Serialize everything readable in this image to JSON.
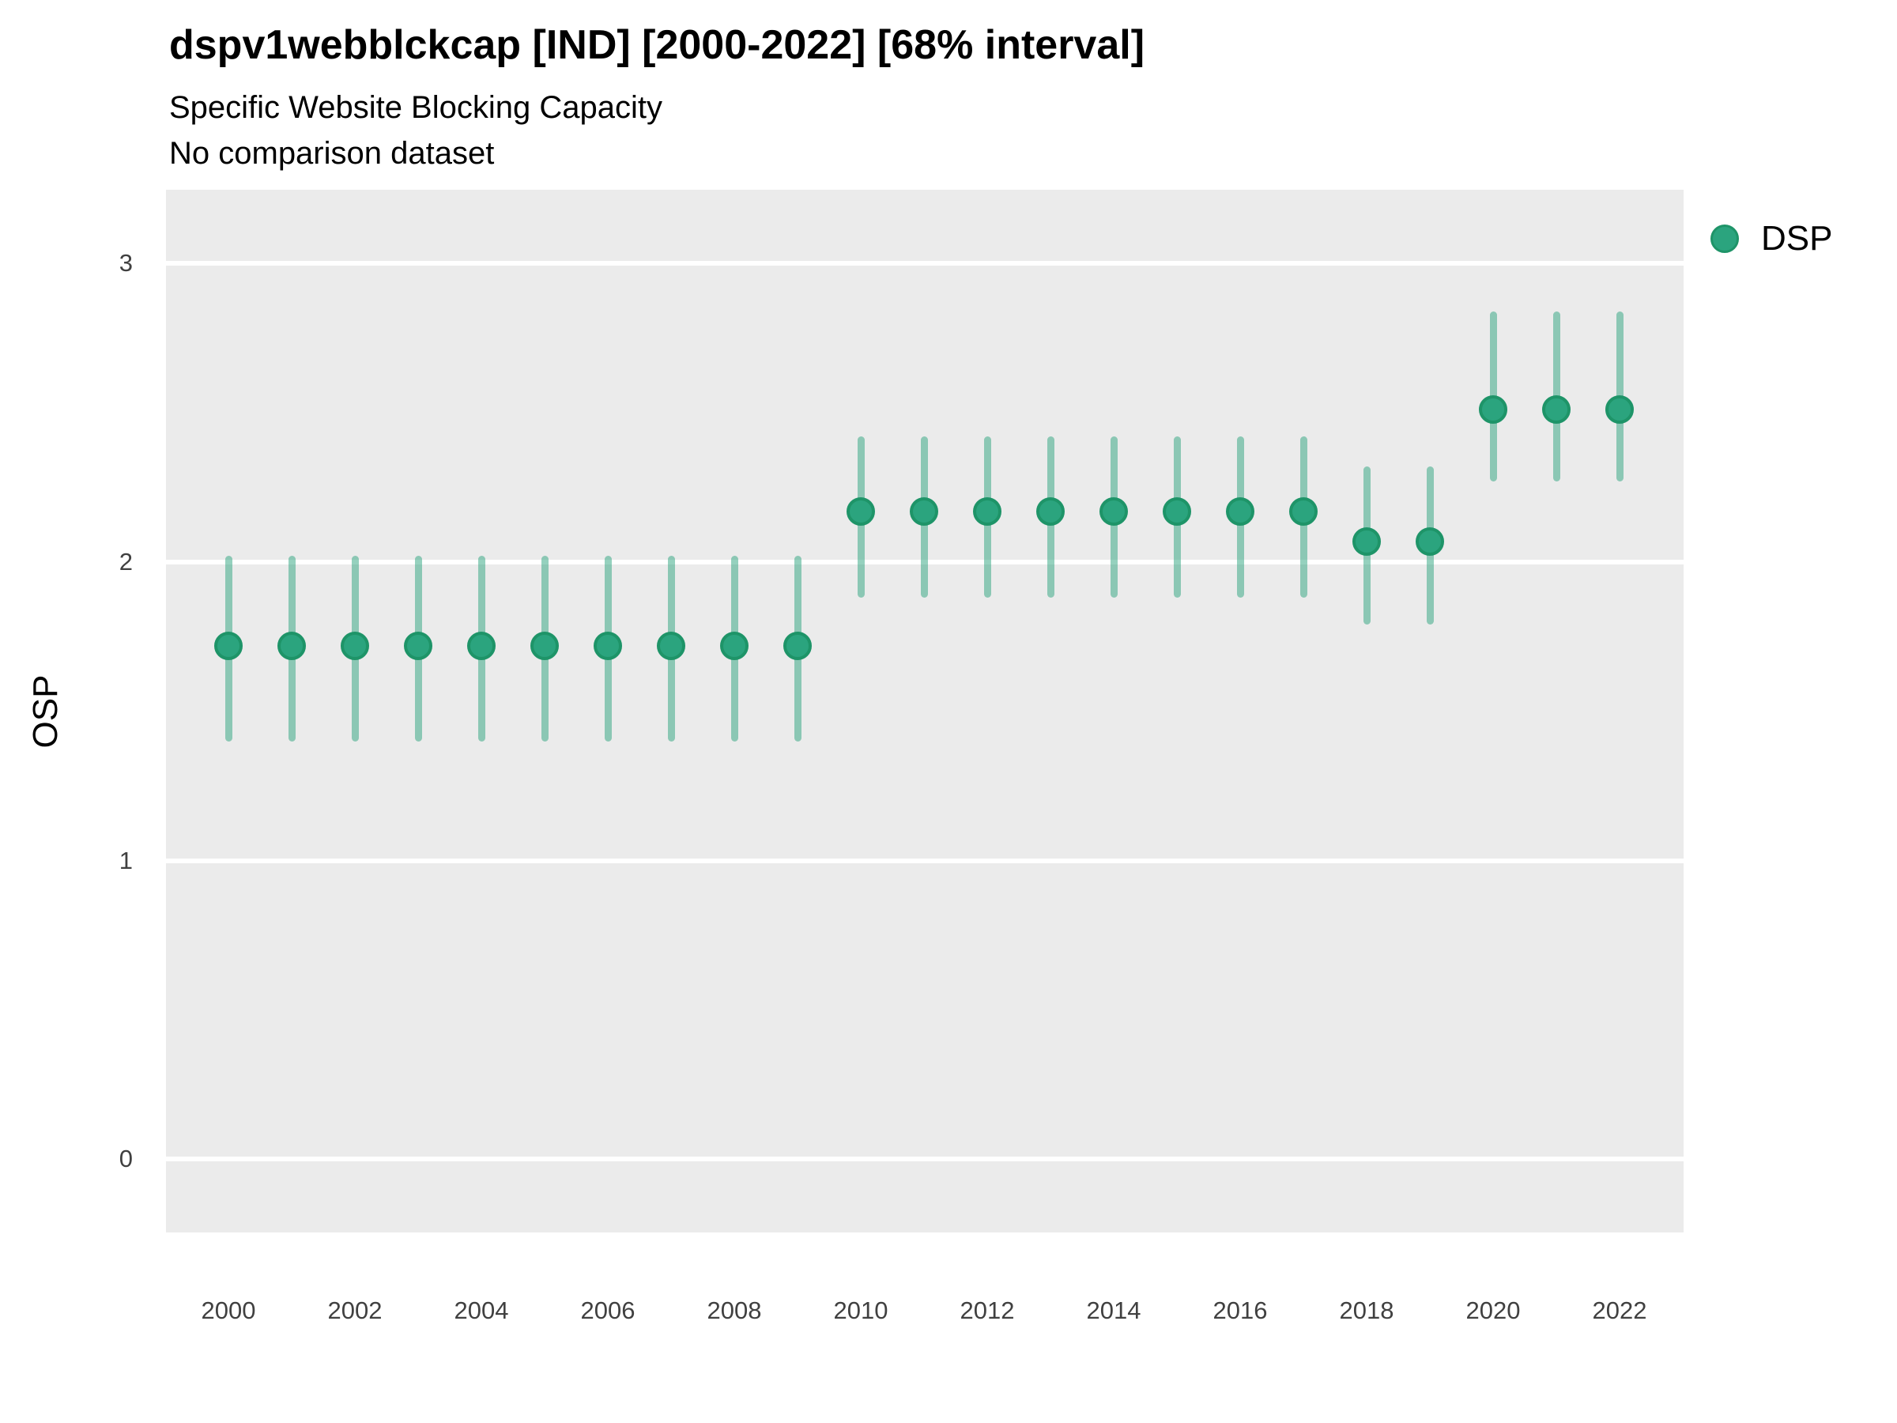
{
  "header": {
    "title": "dspv1webblckcap [IND] [2000-2022] [68% interval]",
    "subtitle": "Specific Website Blocking Capacity",
    "note": "No comparison dataset"
  },
  "legend": {
    "position": "right",
    "items": [
      {
        "label": "DSP",
        "color": "#2BA47E",
        "border": "#1E9468"
      }
    ]
  },
  "chart_data": {
    "type": "pointrange",
    "title": "dspv1webblckcap [IND] [2000-2022] [68% interval]",
    "subtitle": "Specific Website Blocking Capacity",
    "note": "No comparison dataset",
    "interval": "68%",
    "xlabel": "",
    "ylabel": "OSP",
    "x": [
      2000,
      2001,
      2002,
      2003,
      2004,
      2005,
      2006,
      2007,
      2008,
      2009,
      2010,
      2011,
      2012,
      2013,
      2014,
      2015,
      2016,
      2017,
      2018,
      2019,
      2020,
      2021,
      2022
    ],
    "series": [
      {
        "name": "DSP",
        "estimates": [
          1.72,
          1.72,
          1.72,
          1.72,
          1.72,
          1.72,
          1.72,
          1.72,
          1.72,
          1.72,
          2.17,
          2.17,
          2.17,
          2.17,
          2.17,
          2.17,
          2.17,
          2.17,
          2.07,
          2.07,
          2.51,
          2.51,
          2.51
        ],
        "lower": [
          1.4,
          1.4,
          1.4,
          1.4,
          1.4,
          1.4,
          1.4,
          1.4,
          1.4,
          1.4,
          1.88,
          1.88,
          1.88,
          1.88,
          1.88,
          1.88,
          1.88,
          1.88,
          1.79,
          1.79,
          2.27,
          2.27,
          2.27
        ],
        "upper": [
          2.02,
          2.02,
          2.02,
          2.02,
          2.02,
          2.02,
          2.02,
          2.02,
          2.02,
          2.02,
          2.42,
          2.42,
          2.42,
          2.42,
          2.42,
          2.42,
          2.42,
          2.42,
          2.32,
          2.32,
          2.84,
          2.84,
          2.84
        ]
      }
    ],
    "xticks": [
      2000,
      2002,
      2004,
      2006,
      2008,
      2010,
      2012,
      2014,
      2016,
      2018,
      2020,
      2022
    ],
    "yticks": [
      0,
      1,
      2,
      3
    ],
    "xlim": [
      1999.0125,
      2023.0125
    ],
    "ylim": [
      -0.245,
      3.247
    ],
    "grid": "horizontal major gridlines, white on gray panel",
    "legend_position": "right",
    "colors": {
      "point": "#2BA47E",
      "point_border": "#1E9468",
      "range": "rgba(43,164,126,0.5)",
      "panel_bg": "#EBEBEB",
      "grid": "#FFFFFF",
      "tick_text": "#404040"
    }
  }
}
